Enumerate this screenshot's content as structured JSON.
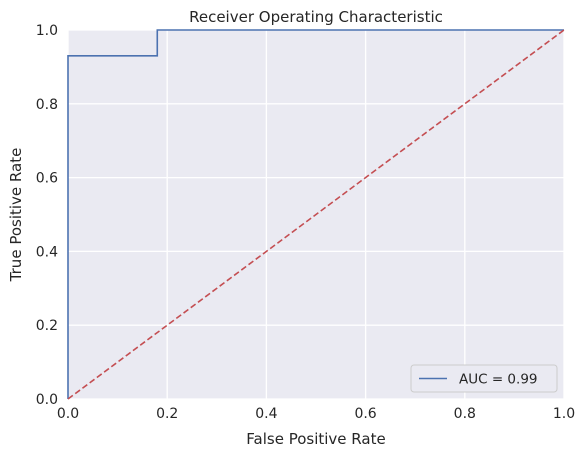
{
  "chart_data": {
    "type": "line",
    "title": "Receiver Operating Characteristic",
    "xlabel": "False Positive Rate",
    "ylabel": "True Positive Rate",
    "xlim": [
      0,
      1
    ],
    "ylim": [
      0,
      1
    ],
    "x_ticks": [
      "0.0",
      "0.2",
      "0.4",
      "0.6",
      "0.8",
      "1.0"
    ],
    "y_ticks": [
      "0.0",
      "0.2",
      "0.4",
      "0.6",
      "0.8",
      "1.0"
    ],
    "grid": true,
    "legend_position": "lower-right",
    "series": [
      {
        "name": "AUC = 0.99",
        "color": "#4c72b0",
        "style": "solid",
        "x": [
          0.0,
          0.0,
          0.18,
          0.18,
          1.0
        ],
        "y": [
          0.0,
          0.93,
          0.93,
          1.0,
          1.0
        ]
      },
      {
        "color": "#c44e52",
        "style": "dashed",
        "x": [
          0,
          1
        ],
        "y": [
          0,
          1
        ]
      }
    ]
  }
}
